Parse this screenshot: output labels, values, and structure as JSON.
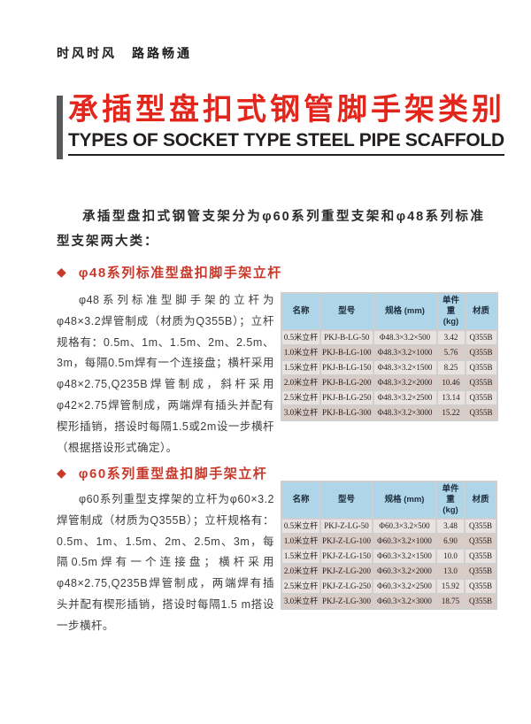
{
  "page": {
    "slogan": "时风时风　路路畅通",
    "title_cn": "承插型盘扣式钢管脚手架类别",
    "title_en": "TYPES OF SOCKET TYPE STEEL PIPE SCAFFOLD",
    "intro": "承插型盘扣式钢管支架分为φ60系列重型支架和φ48系列标准型支架两大类："
  },
  "colors": {
    "accent_red": "#e3261c",
    "heading_red": "#c8392c",
    "title_bar_gray": "#58595b",
    "table_header_bg": "#aed6e8",
    "table_row_light": "#eae1e1",
    "table_row_dark": "#d9cbc6"
  },
  "icons": {
    "diamond": "◆"
  },
  "sections": [
    {
      "heading": "φ48系列标准型盘扣脚手架立杆",
      "body": "φ48系列标准型脚手架的立杆为φ48×3.2焊管制成（材质为Q355B）；立杆规格有：0.5m、1m、1.5m、2m、2.5m、3m，每隔0.5m焊有一个连接盘；横杆采用φ48×2.75,Q235B焊管制成，斜杆采用φ42×2.75焊管制成，两端焊有插头并配有楔形插销，搭设时每隔1.5或2m设一步横杆（根据搭设形式确定）。",
      "table": {
        "headers": [
          "名称",
          "型号",
          "规格 (mm)",
          "单件重 (kg)",
          "材质"
        ],
        "rows": [
          [
            "0.5米立杆",
            "PKJ-B-LG-50",
            "Φ48.3×3.2×500",
            "3.42",
            "Q355B"
          ],
          [
            "1.0米立杆",
            "PKJ-B-LG-100",
            "Φ48.3×3.2×1000",
            "5.76",
            "Q355B"
          ],
          [
            "1.5米立杆",
            "PKJ-B-LG-150",
            "Φ48.3×3.2×1500",
            "8.25",
            "Q355B"
          ],
          [
            "2.0米立杆",
            "PKJ-B-LG-200",
            "Φ48.3×3.2×2000",
            "10.46",
            "Q355B"
          ],
          [
            "2.5米立杆",
            "PKJ-B-LG-250",
            "Φ48.3×3.2×2500",
            "13.14",
            "Q355B"
          ],
          [
            "3.0米立杆",
            "PKJ-B-LG-300",
            "Φ48.3×3.2×3000",
            "15.22",
            "Q355B"
          ]
        ]
      }
    },
    {
      "heading": "φ60系列重型盘扣脚手架立杆",
      "body": "φ60系列重型支撑架的立杆为φ60×3.2焊管制成（材质为Q355B）；立杆规格有：0.5m、1m、1.5m、2m、2.5m、3m，每隔0.5m焊有一个连接盘；横杆采用φ48×2.75,Q235B焊管制成，两端焊有插头并配有楔形插销，搭设时每隔1.5 m搭设一步横杆。",
      "table": {
        "headers": [
          "名称",
          "型号",
          "规格 (mm)",
          "单件重 (kg)",
          "材质"
        ],
        "rows": [
          [
            "0.5米立杆",
            "PKJ-Z-LG-50",
            "Φ60.3×3.2×500",
            "3.48",
            "Q355B"
          ],
          [
            "1.0米立杆",
            "PKJ-Z-LG-100",
            "Φ60.3×3.2×1000",
            "6.90",
            "Q355B"
          ],
          [
            "1.5米立杆",
            "PKJ-Z-LG-150",
            "Φ60.3×3.2×1500",
            "10.0",
            "Q355B"
          ],
          [
            "2.0米立杆",
            "PKJ-Z-LG-200",
            "Φ60.3×3.2×2000",
            "13.0",
            "Q355B"
          ],
          [
            "2.5米立杆",
            "PKJ-Z-LG-250",
            "Φ60.3×3.2×2500",
            "15.92",
            "Q355B"
          ],
          [
            "3.0米立杆",
            "PKJ-Z-LG-300",
            "Φ60.3×3.2×3000",
            "18.75",
            "Q355B"
          ]
        ]
      }
    }
  ]
}
